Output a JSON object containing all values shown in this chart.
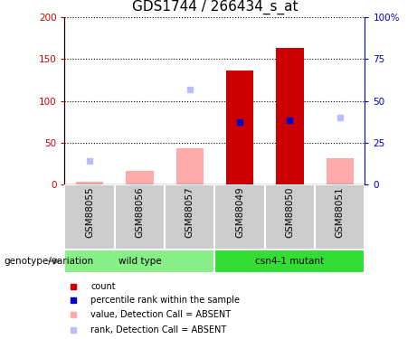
{
  "title": "GDS1744 / 266434_s_at",
  "samples": [
    "GSM88055",
    "GSM88056",
    "GSM88057",
    "GSM88049",
    "GSM88050",
    "GSM88051"
  ],
  "groups": [
    {
      "label": "wild type",
      "color": "#88ee88"
    },
    {
      "label": "csn4-1 mutant",
      "color": "#33dd33"
    }
  ],
  "count_values": [
    0,
    0,
    0,
    136,
    163,
    0
  ],
  "percentile_values": [
    0,
    0,
    0,
    37.5,
    38.5,
    0
  ],
  "absent_value_bars": [
    4,
    17,
    44,
    0,
    0,
    32
  ],
  "absent_rank_dots": [
    14,
    0,
    57,
    0,
    0,
    40
  ],
  "ylim_left": [
    0,
    200
  ],
  "ylim_right": [
    0,
    100
  ],
  "left_yticks": [
    0,
    50,
    100,
    150,
    200
  ],
  "right_yticks": [
    0,
    25,
    50,
    75,
    100
  ],
  "right_yticklabels": [
    "0",
    "25",
    "50",
    "75",
    "100%"
  ],
  "color_count": "#cc0000",
  "color_percentile": "#0000cc",
  "color_absent_value": "#ffaaaa",
  "color_absent_rank": "#bbbbff",
  "color_left_axis": "#cc0000",
  "color_right_axis": "#0000cc",
  "color_sample_bg": "#cccccc",
  "title_fontsize": 11,
  "tick_fontsize": 7.5,
  "legend_fontsize": 7,
  "genotype_fontsize": 7.5
}
